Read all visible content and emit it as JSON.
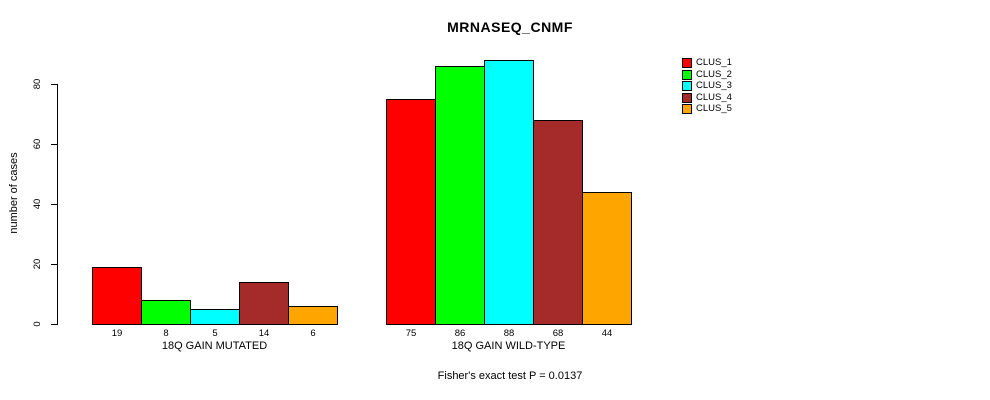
{
  "chart_data": {
    "type": "bar",
    "title": "MRNASEQ_CNMF",
    "ylabel": "number of cases",
    "xlabel": "",
    "ylim": [
      0,
      88
    ],
    "yticks": [
      0,
      20,
      40,
      60,
      80
    ],
    "grid": false,
    "legend_position": "right",
    "bar_border_color": "#000000",
    "series_names": [
      "CLUS_1",
      "CLUS_2",
      "CLUS_3",
      "CLUS_4",
      "CLUS_5"
    ],
    "colors": [
      "#FF0000",
      "#00FF00",
      "#00FFFF",
      "#A52A2A",
      "#FFA500"
    ],
    "groups": [
      {
        "label": "18Q GAIN MUTATED",
        "values": [
          19,
          8,
          5,
          14,
          6
        ]
      },
      {
        "label": "18Q GAIN WILD-TYPE",
        "values": [
          75,
          86,
          88,
          68,
          44
        ]
      }
    ],
    "annotation": "Fisher's exact test P = 0.0137"
  }
}
